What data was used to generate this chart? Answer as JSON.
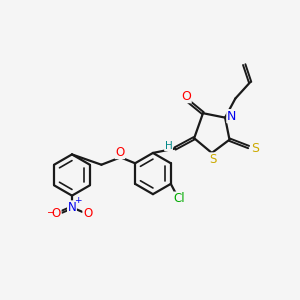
{
  "bg_color": "#f5f5f5",
  "bond_color": "#1a1a1a",
  "atom_colors": {
    "O": "#ff0000",
    "N": "#0000ee",
    "S": "#ccaa00",
    "Cl": "#00aa00",
    "H": "#008888",
    "C": "#1a1a1a"
  },
  "figsize": [
    3.0,
    3.0
  ],
  "dpi": 100
}
